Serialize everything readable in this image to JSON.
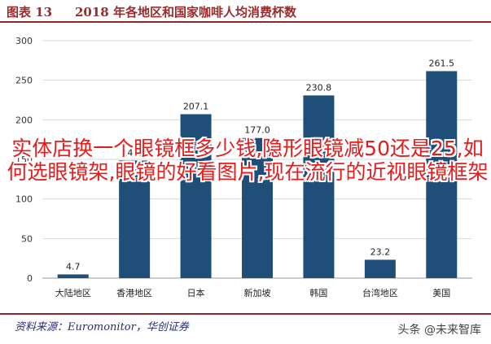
{
  "header": {
    "figure_label": "图表 13",
    "title": "2018 年各地区和国家咖啡人均消费杯数"
  },
  "chart_data": {
    "type": "bar",
    "categories": [
      "大陆地区",
      "香港地区",
      "日本",
      "新加坡",
      "韩国",
      "台湾地区",
      "美国"
    ],
    "values": [
      4.7,
      148.6,
      207.1,
      177.0,
      230.8,
      23.2,
      261.5
    ],
    "value_labels": [
      "4.7",
      "148.6",
      "207.1",
      "177.0",
      "230.8",
      "23.2",
      "261.5"
    ],
    "ylim": [
      0,
      300
    ],
    "yticks": [
      0,
      50,
      100,
      150,
      200,
      250,
      300
    ],
    "grid": true,
    "bar_color": "#1f4e79"
  },
  "overlay_text": "实体店换一个眼镜框多少钱,隐形眼镜减50还是25,如何选眼镜架,眼镜的好看图片,现在流行的近视眼镜框架",
  "footer": {
    "source": "资料来源：Euromonitor，华创证券",
    "watermark": "头条 @未来智库"
  }
}
